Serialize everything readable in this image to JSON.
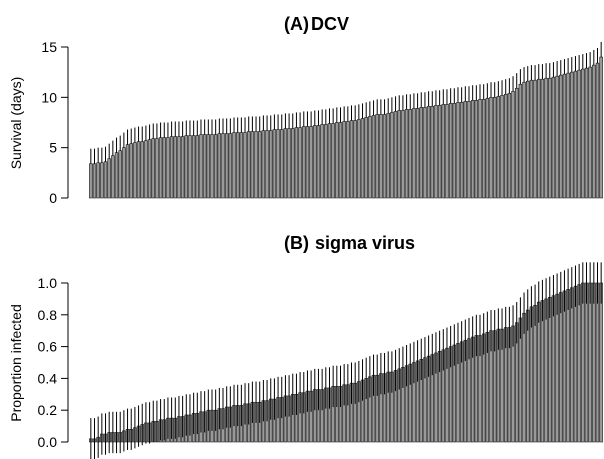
{
  "chart_data": [
    {
      "type": "bar",
      "panel_label": "(A)",
      "title": "DCV",
      "ylabel": "Survival (days)",
      "xlabel": "",
      "ylim": [
        0,
        15
      ],
      "yticks": [
        0,
        5,
        10,
        15
      ],
      "bar_color": "#9a9a9a",
      "error_bar_color": "#000000",
      "error_bars": "upper",
      "error_half_width": 1.5,
      "x": [
        1,
        2,
        3,
        4,
        5,
        6,
        7,
        8,
        9,
        10,
        11,
        12,
        13,
        14,
        15,
        16,
        17,
        18,
        19,
        20,
        21,
        22,
        23,
        24,
        25,
        26,
        27,
        28,
        29,
        30,
        31,
        32,
        33,
        34,
        35,
        36,
        37,
        38,
        39,
        40,
        41,
        42,
        43,
        44,
        45,
        46,
        47,
        48,
        49,
        50,
        51,
        52,
        53,
        54,
        55,
        56,
        57,
        58,
        59,
        60,
        61,
        62,
        63,
        64,
        65,
        66,
        67,
        68,
        69,
        70,
        71,
        72,
        73,
        74,
        75,
        76,
        77,
        78,
        79,
        80,
        81,
        82,
        83,
        84,
        85,
        86,
        87,
        88,
        89,
        90,
        91,
        92,
        93,
        94,
        95,
        96,
        97,
        98,
        99,
        100,
        101,
        102,
        103,
        104,
        105,
        106,
        107,
        108,
        109,
        110,
        111,
        112,
        113,
        114,
        115,
        116,
        117,
        118,
        119,
        120,
        121,
        122,
        123,
        124,
        125,
        126,
        127,
        128,
        129,
        130,
        131,
        132,
        133,
        134,
        135,
        136,
        137,
        138,
        139,
        140
      ],
      "values": [
        3.4,
        3.4,
        3.5,
        3.5,
        3.6,
        3.9,
        4.2,
        4.5,
        4.7,
        5.0,
        5.3,
        5.4,
        5.5,
        5.6,
        5.6,
        5.7,
        5.8,
        5.9,
        5.9,
        6.0,
        6.0,
        6.0,
        6.1,
        6.1,
        6.1,
        6.1,
        6.2,
        6.2,
        6.2,
        6.2,
        6.3,
        6.3,
        6.3,
        6.3,
        6.3,
        6.4,
        6.4,
        6.4,
        6.4,
        6.5,
        6.5,
        6.5,
        6.5,
        6.6,
        6.6,
        6.6,
        6.6,
        6.7,
        6.7,
        6.7,
        6.8,
        6.8,
        6.8,
        6.9,
        6.9,
        6.9,
        7.0,
        7.0,
        7.1,
        7.1,
        7.1,
        7.2,
        7.2,
        7.3,
        7.3,
        7.4,
        7.4,
        7.5,
        7.5,
        7.6,
        7.6,
        7.7,
        7.7,
        7.8,
        7.9,
        8.0,
        8.1,
        8.2,
        8.3,
        8.3,
        8.3,
        8.4,
        8.5,
        8.6,
        8.7,
        8.7,
        8.8,
        8.8,
        8.9,
        8.9,
        9.0,
        9.0,
        9.1,
        9.1,
        9.2,
        9.2,
        9.3,
        9.3,
        9.4,
        9.4,
        9.5,
        9.5,
        9.6,
        9.6,
        9.7,
        9.7,
        9.8,
        9.8,
        9.9,
        10.0,
        10.0,
        10.1,
        10.2,
        10.3,
        10.4,
        10.6,
        10.9,
        11.3,
        11.5,
        11.6,
        11.7,
        11.7,
        11.8,
        11.8,
        11.9,
        11.9,
        12.0,
        12.1,
        12.2,
        12.3,
        12.4,
        12.5,
        12.6,
        12.7,
        12.8,
        12.9,
        13.0,
        13.2,
        13.4,
        14.0
      ]
    },
    {
      "type": "bar",
      "panel_label": "(B)",
      "title": "sigma virus",
      "ylabel": "Proportion infected",
      "xlabel": "",
      "ylim": [
        0,
        1.0
      ],
      "yticks": [
        0.0,
        0.2,
        0.4,
        0.6,
        0.8,
        1.0
      ],
      "bar_color": "#9a9a9a",
      "error_bar_color": "#000000",
      "error_bars": "both",
      "error_half_width": 0.13,
      "x": [
        1,
        2,
        3,
        4,
        5,
        6,
        7,
        8,
        9,
        10,
        11,
        12,
        13,
        14,
        15,
        16,
        17,
        18,
        19,
        20,
        21,
        22,
        23,
        24,
        25,
        26,
        27,
        28,
        29,
        30,
        31,
        32,
        33,
        34,
        35,
        36,
        37,
        38,
        39,
        40,
        41,
        42,
        43,
        44,
        45,
        46,
        47,
        48,
        49,
        50,
        51,
        52,
        53,
        54,
        55,
        56,
        57,
        58,
        59,
        60,
        61,
        62,
        63,
        64,
        65,
        66,
        67,
        68,
        69,
        70,
        71,
        72,
        73,
        74,
        75,
        76,
        77,
        78,
        79,
        80,
        81,
        82,
        83,
        84,
        85,
        86,
        87,
        88,
        89,
        90,
        91,
        92,
        93,
        94,
        95,
        96,
        97,
        98,
        99,
        100,
        101,
        102,
        103,
        104,
        105,
        106,
        107,
        108,
        109,
        110,
        111,
        112,
        113,
        114,
        115,
        116,
        117,
        118,
        119,
        120,
        121,
        122,
        123,
        124,
        125,
        126,
        127,
        128,
        129,
        130,
        131,
        132,
        133,
        134,
        135,
        136,
        137,
        138,
        139,
        140
      ],
      "values": [
        0.02,
        0.02,
        0.03,
        0.05,
        0.05,
        0.06,
        0.06,
        0.06,
        0.06,
        0.07,
        0.08,
        0.08,
        0.09,
        0.1,
        0.11,
        0.12,
        0.12,
        0.13,
        0.13,
        0.14,
        0.14,
        0.15,
        0.15,
        0.15,
        0.16,
        0.16,
        0.17,
        0.17,
        0.18,
        0.18,
        0.19,
        0.19,
        0.2,
        0.2,
        0.2,
        0.21,
        0.21,
        0.22,
        0.22,
        0.23,
        0.23,
        0.23,
        0.24,
        0.24,
        0.25,
        0.25,
        0.25,
        0.26,
        0.26,
        0.27,
        0.27,
        0.28,
        0.28,
        0.29,
        0.29,
        0.3,
        0.3,
        0.31,
        0.31,
        0.32,
        0.32,
        0.33,
        0.33,
        0.33,
        0.34,
        0.34,
        0.35,
        0.35,
        0.35,
        0.36,
        0.36,
        0.37,
        0.37,
        0.38,
        0.39,
        0.4,
        0.41,
        0.42,
        0.42,
        0.43,
        0.43,
        0.44,
        0.44,
        0.45,
        0.46,
        0.47,
        0.48,
        0.49,
        0.5,
        0.51,
        0.52,
        0.53,
        0.54,
        0.55,
        0.56,
        0.57,
        0.58,
        0.59,
        0.6,
        0.61,
        0.62,
        0.63,
        0.64,
        0.65,
        0.66,
        0.67,
        0.67,
        0.68,
        0.69,
        0.7,
        0.7,
        0.71,
        0.71,
        0.72,
        0.72,
        0.73,
        0.75,
        0.78,
        0.81,
        0.83,
        0.85,
        0.86,
        0.88,
        0.89,
        0.9,
        0.91,
        0.92,
        0.93,
        0.94,
        0.95,
        0.96,
        0.97,
        0.98,
        0.99,
        1.0,
        1.0,
        1.0,
        1.0,
        1.0,
        1.0
      ]
    }
  ]
}
